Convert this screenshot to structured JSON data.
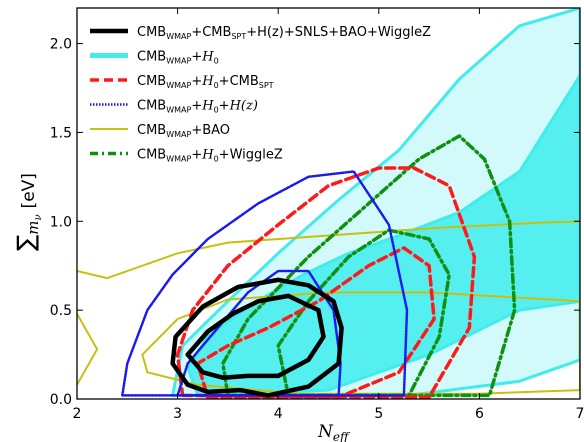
{
  "chart_data": {
    "type": "contour",
    "x": {
      "ticks": [
        2,
        3,
        4,
        5,
        6,
        7
      ],
      "lim": [
        2,
        7
      ]
    },
    "y": {
      "ticks": [
        0.0,
        0.5,
        1.0,
        1.5,
        2.0
      ],
      "tick_labels": [
        "0.0",
        "0.5",
        "1.0",
        "1.5",
        "2.0"
      ],
      "lim": [
        0,
        2.2
      ]
    },
    "xlabel": {
      "base": "N",
      "sub": "eff"
    },
    "ylabel": {
      "sum": "∑",
      "m": "m",
      "sub": "ν",
      "unit": "[eV]"
    },
    "legend": {
      "placement": "top-left"
    },
    "series": [
      {
        "key": "all",
        "label_parts": [
          "CMB",
          "WMAP",
          "+CMB",
          "SPT",
          "+H(z)+SNLS+BAO+WiggleZ"
        ],
        "color": "#000000",
        "style": "solid-thick",
        "contours": [
          [
            [
              3.62,
              0.05
            ],
            [
              3.9,
              0.02
            ],
            [
              4.3,
              0.07
            ],
            [
              4.6,
              0.2
            ],
            [
              4.63,
              0.4
            ],
            [
              4.55,
              0.55
            ],
            [
              4.3,
              0.64
            ],
            [
              4.0,
              0.67
            ],
            [
              3.6,
              0.63
            ],
            [
              3.25,
              0.52
            ],
            [
              2.98,
              0.35
            ],
            [
              2.95,
              0.2
            ],
            [
              3.1,
              0.08
            ],
            [
              3.3,
              0.04
            ],
            [
              3.62,
              0.05
            ]
          ],
          [
            [
              3.7,
              0.13
            ],
            [
              4.0,
              0.13
            ],
            [
              4.3,
              0.22
            ],
            [
              4.45,
              0.35
            ],
            [
              4.4,
              0.5
            ],
            [
              4.1,
              0.58
            ],
            [
              3.8,
              0.55
            ],
            [
              3.55,
              0.48
            ],
            [
              3.3,
              0.38
            ],
            [
              3.1,
              0.25
            ],
            [
              3.25,
              0.15
            ],
            [
              3.45,
              0.12
            ],
            [
              3.7,
              0.13
            ]
          ]
        ]
      },
      {
        "key": "h0",
        "label_parts": [
          "CMB",
          "WMAP",
          "+",
          "H",
          "0"
        ],
        "color": "#40ecec",
        "style": "filled",
        "contours": [
          [
            [
              3.2,
              0.02
            ],
            [
              4.5,
              0.05
            ],
            [
              5.5,
              0.25
            ],
            [
              6.4,
              0.5
            ],
            [
              7.0,
              0.55
            ],
            [
              7.0,
              1.82
            ],
            [
              6.4,
              1.28
            ],
            [
              5.8,
              1.05
            ],
            [
              5.2,
              0.92
            ],
            [
              4.7,
              0.82
            ],
            [
              4.25,
              0.7
            ],
            [
              3.7,
              0.52
            ],
            [
              3.3,
              0.35
            ],
            [
              3.1,
              0.18
            ],
            [
              3.2,
              0.02
            ]
          ],
          [
            [
              2.95,
              0.02
            ],
            [
              5.3,
              0.02
            ],
            [
              6.4,
              0.1
            ],
            [
              7.0,
              0.22
            ],
            [
              7.0,
              2.2
            ],
            [
              6.4,
              2.1
            ],
            [
              5.8,
              1.8
            ],
            [
              5.2,
              1.4
            ],
            [
              4.6,
              1.12
            ],
            [
              4.0,
              0.82
            ],
            [
              3.5,
              0.55
            ],
            [
              3.05,
              0.3
            ],
            [
              2.95,
              0.02
            ]
          ]
        ]
      },
      {
        "key": "h0spt",
        "label_parts": [
          "CMB",
          "WMAP",
          "+",
          "H",
          "0",
          "+CMB",
          "SPT"
        ],
        "color": "#ff1a1a",
        "style": "dashed",
        "contours": [
          [
            [
              3.3,
              0.01
            ],
            [
              4.6,
              0.01
            ],
            [
              5.2,
              0.15
            ],
            [
              5.55,
              0.45
            ],
            [
              5.5,
              0.75
            ],
            [
              5.25,
              0.85
            ],
            [
              4.9,
              0.75
            ],
            [
              4.4,
              0.55
            ],
            [
              3.9,
              0.4
            ],
            [
              3.5,
              0.3
            ],
            [
              3.2,
              0.2
            ],
            [
              3.3,
              0.01
            ]
          ],
          [
            [
              3.05,
              0.02
            ],
            [
              5.5,
              0.01
            ],
            [
              5.9,
              0.4
            ],
            [
              5.95,
              0.8
            ],
            [
              5.7,
              1.2
            ],
            [
              5.35,
              1.3
            ],
            [
              5.0,
              1.3
            ],
            [
              4.5,
              1.2
            ],
            [
              4.0,
              0.98
            ],
            [
              3.5,
              0.75
            ],
            [
              3.15,
              0.5
            ],
            [
              3.0,
              0.25
            ],
            [
              3.05,
              0.02
            ]
          ]
        ]
      },
      {
        "key": "h0hz",
        "label_parts": [
          "CMB",
          "WMAP",
          "+",
          "H",
          "0",
          "+",
          "H(z)"
        ],
        "color": "#1a1aee",
        "style": "dotted",
        "contours": [
          [
            [
              3.0,
              0.02
            ],
            [
              4.6,
              0.02
            ],
            [
              4.62,
              0.2
            ],
            [
              4.55,
              0.5
            ],
            [
              4.3,
              0.72
            ],
            [
              4.0,
              0.72
            ],
            [
              3.7,
              0.6
            ],
            [
              3.4,
              0.4
            ],
            [
              3.1,
              0.2
            ],
            [
              3.0,
              0.02
            ]
          ],
          [
            [
              2.45,
              0.02
            ],
            [
              5.25,
              0.02
            ],
            [
              5.28,
              0.5
            ],
            [
              5.1,
              0.98
            ],
            [
              4.75,
              1.28
            ],
            [
              4.3,
              1.25
            ],
            [
              3.8,
              1.1
            ],
            [
              3.3,
              0.9
            ],
            [
              2.95,
              0.7
            ],
            [
              2.7,
              0.5
            ],
            [
              2.5,
              0.2
            ],
            [
              2.45,
              0.02
            ]
          ]
        ]
      },
      {
        "key": "bao",
        "label_parts": [
          "CMB",
          "WMAP",
          "+BAO"
        ],
        "color": "#c8c010",
        "style": "solid",
        "contours": [
          [
            [
              2.65,
              0.25
            ],
            [
              3.0,
              0.45
            ],
            [
              3.5,
              0.56
            ],
            [
              4.5,
              0.6
            ],
            [
              5.5,
              0.6
            ],
            [
              7.0,
              0.55
            ],
            [
              7.0,
              0.05
            ],
            [
              6.0,
              0.03
            ],
            [
              4.2,
              0.03
            ],
            [
              3.2,
              0.08
            ],
            [
              2.7,
              0.15
            ],
            [
              2.65,
              0.25
            ]
          ],
          [
            [
              2.0,
              0.72
            ],
            [
              2.3,
              0.68
            ],
            [
              3.0,
              0.82
            ],
            [
              3.5,
              0.88
            ],
            [
              4.5,
              0.92
            ],
            [
              5.5,
              0.96
            ],
            [
              6.5,
              0.99
            ],
            [
              7.0,
              1.0
            ]
          ],
          [
            [
              2.0,
              0.48
            ],
            [
              2.2,
              0.28
            ],
            [
              2.0,
              0.08
            ]
          ]
        ]
      },
      {
        "key": "h0wig",
        "label_parts": [
          "CMB",
          "WMAP",
          "+",
          "H",
          "0",
          "+WiggleZ"
        ],
        "color": "#109010",
        "style": "dashdot",
        "contours": [
          [
            [
              4.1,
              0.02
            ],
            [
              5.3,
              0.02
            ],
            [
              5.6,
              0.35
            ],
            [
              5.7,
              0.7
            ],
            [
              5.5,
              0.9
            ],
            [
              5.1,
              0.95
            ],
            [
              4.7,
              0.8
            ],
            [
              4.3,
              0.55
            ],
            [
              4.0,
              0.3
            ],
            [
              4.1,
              0.02
            ]
          ],
          [
            [
              3.5,
              0.02
            ],
            [
              6.1,
              0.02
            ],
            [
              6.35,
              0.5
            ],
            [
              6.3,
              1.0
            ],
            [
              6.05,
              1.35
            ],
            [
              5.8,
              1.48
            ],
            [
              5.4,
              1.35
            ],
            [
              4.9,
              1.1
            ],
            [
              4.3,
              0.8
            ],
            [
              3.7,
              0.45
            ],
            [
              3.45,
              0.2
            ],
            [
              3.5,
              0.02
            ]
          ]
        ]
      }
    ]
  }
}
